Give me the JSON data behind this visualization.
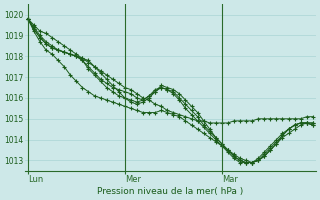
{
  "background_color": "#cde8e8",
  "grid_color": "#b0d8d8",
  "line_color": "#1a5c1a",
  "marker_color": "#1a5c1a",
  "xlabel": "Pression niveau de la mer( hPa )",
  "ylim": [
    1012.5,
    1020.5
  ],
  "yticks": [
    1013,
    1014,
    1015,
    1016,
    1017,
    1018,
    1019,
    1020
  ],
  "xtick_labels": [
    "Lun",
    "Mer",
    "Mar"
  ],
  "xtick_positions": [
    0,
    16,
    32
  ],
  "n_points": 48,
  "vline_positions": [
    0,
    16,
    32
  ],
  "series": [
    [
      1019.8,
      1019.5,
      1019.2,
      1019.1,
      1018.9,
      1018.7,
      1018.5,
      1018.3,
      1018.1,
      1017.9,
      1017.7,
      1017.5,
      1017.3,
      1017.1,
      1016.9,
      1016.7,
      1016.5,
      1016.4,
      1016.2,
      1016.0,
      1015.9,
      1015.7,
      1015.6,
      1015.4,
      1015.3,
      1015.2,
      1015.1,
      1015.0,
      1014.9,
      1014.9,
      1014.8,
      1014.8,
      1014.8,
      1014.8,
      1014.9,
      1014.9,
      1014.9,
      1014.9,
      1015.0,
      1015.0,
      1015.0,
      1015.0,
      1015.0,
      1015.0,
      1015.0,
      1015.0,
      1015.1,
      1015.1
    ],
    [
      1019.8,
      1019.4,
      1019.0,
      1018.7,
      1018.5,
      1018.3,
      1018.2,
      1018.1,
      1018.0,
      1017.9,
      1017.8,
      1017.5,
      1017.2,
      1016.9,
      1016.6,
      1016.3,
      1016.0,
      1015.8,
      1015.7,
      1015.8,
      1016.0,
      1016.3,
      1016.6,
      1016.5,
      1016.4,
      1016.2,
      1015.9,
      1015.6,
      1015.3,
      1014.9,
      1014.5,
      1014.1,
      1013.8,
      1013.5,
      1013.2,
      1013.0,
      1012.9,
      1012.9,
      1013.0,
      1013.2,
      1013.5,
      1013.8,
      1014.2,
      1014.5,
      1014.7,
      1014.8,
      1014.8,
      1014.7
    ],
    [
      1019.8,
      1019.3,
      1018.9,
      1018.6,
      1018.4,
      1018.3,
      1018.2,
      1018.1,
      1018.0,
      1017.8,
      1017.5,
      1017.2,
      1016.9,
      1016.7,
      1016.5,
      1016.4,
      1016.3,
      1016.2,
      1016.0,
      1015.9,
      1016.1,
      1016.3,
      1016.5,
      1016.4,
      1016.3,
      1016.0,
      1015.7,
      1015.4,
      1015.1,
      1014.7,
      1014.4,
      1014.1,
      1013.8,
      1013.5,
      1013.2,
      1013.0,
      1012.9,
      1012.9,
      1013.0,
      1013.3,
      1013.6,
      1013.9,
      1014.2,
      1014.5,
      1014.7,
      1014.8,
      1014.8,
      1014.7
    ],
    [
      1019.8,
      1019.3,
      1018.9,
      1018.6,
      1018.4,
      1018.3,
      1018.2,
      1018.1,
      1018.0,
      1017.8,
      1017.4,
      1017.1,
      1016.8,
      1016.5,
      1016.3,
      1016.1,
      1016.0,
      1015.9,
      1015.8,
      1015.9,
      1016.1,
      1016.4,
      1016.5,
      1016.4,
      1016.2,
      1015.9,
      1015.5,
      1015.2,
      1014.9,
      1014.6,
      1014.3,
      1014.0,
      1013.7,
      1013.4,
      1013.1,
      1012.9,
      1012.9,
      1012.9,
      1013.1,
      1013.4,
      1013.7,
      1014.0,
      1014.3,
      1014.5,
      1014.7,
      1014.8,
      1014.8,
      1014.8
    ],
    [
      1019.8,
      1019.2,
      1018.7,
      1018.3,
      1018.1,
      1017.8,
      1017.5,
      1017.1,
      1016.8,
      1016.5,
      1016.3,
      1016.1,
      1016.0,
      1015.9,
      1015.8,
      1015.7,
      1015.6,
      1015.5,
      1015.4,
      1015.3,
      1015.3,
      1015.3,
      1015.4,
      1015.3,
      1015.2,
      1015.1,
      1014.9,
      1014.7,
      1014.5,
      1014.3,
      1014.1,
      1013.9,
      1013.7,
      1013.5,
      1013.3,
      1013.1,
      1013.0,
      1012.9,
      1013.0,
      1013.2,
      1013.5,
      1013.8,
      1014.1,
      1014.3,
      1014.5,
      1014.7,
      1014.8,
      1014.8
    ]
  ]
}
